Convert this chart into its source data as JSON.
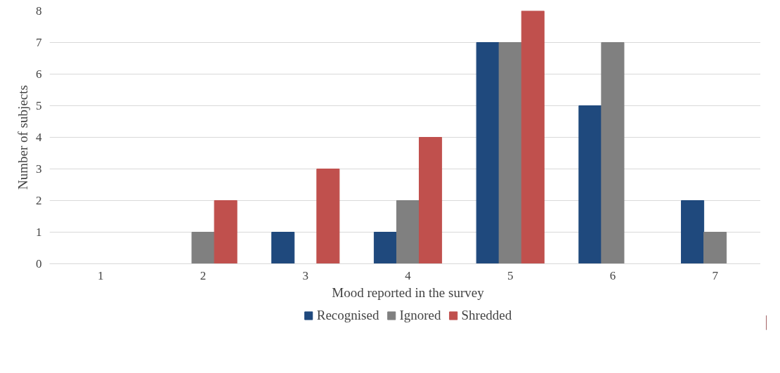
{
  "chart_data": {
    "type": "bar",
    "xlabel": "Mood reported in the survey",
    "ylabel": "Number of subjects",
    "categories": [
      "1",
      "2",
      "3",
      "4",
      "5",
      "6",
      "7"
    ],
    "series": [
      {
        "name": "Recognised",
        "color": "#1f497d",
        "values": [
          0,
          0,
          1,
          1,
          7,
          5,
          2
        ]
      },
      {
        "name": "Ignored",
        "color": "#808080",
        "values": [
          0,
          1,
          0,
          2,
          7,
          7,
          1
        ]
      },
      {
        "name": "Shredded",
        "color": "#c0504d",
        "values": [
          0,
          2,
          3,
          4,
          8,
          0,
          0
        ]
      }
    ],
    "ylim": [
      0,
      8
    ],
    "yticks": [
      0,
      1,
      2,
      3,
      4,
      5,
      6,
      7,
      8
    ],
    "grid": "y",
    "legend": "bottom"
  }
}
